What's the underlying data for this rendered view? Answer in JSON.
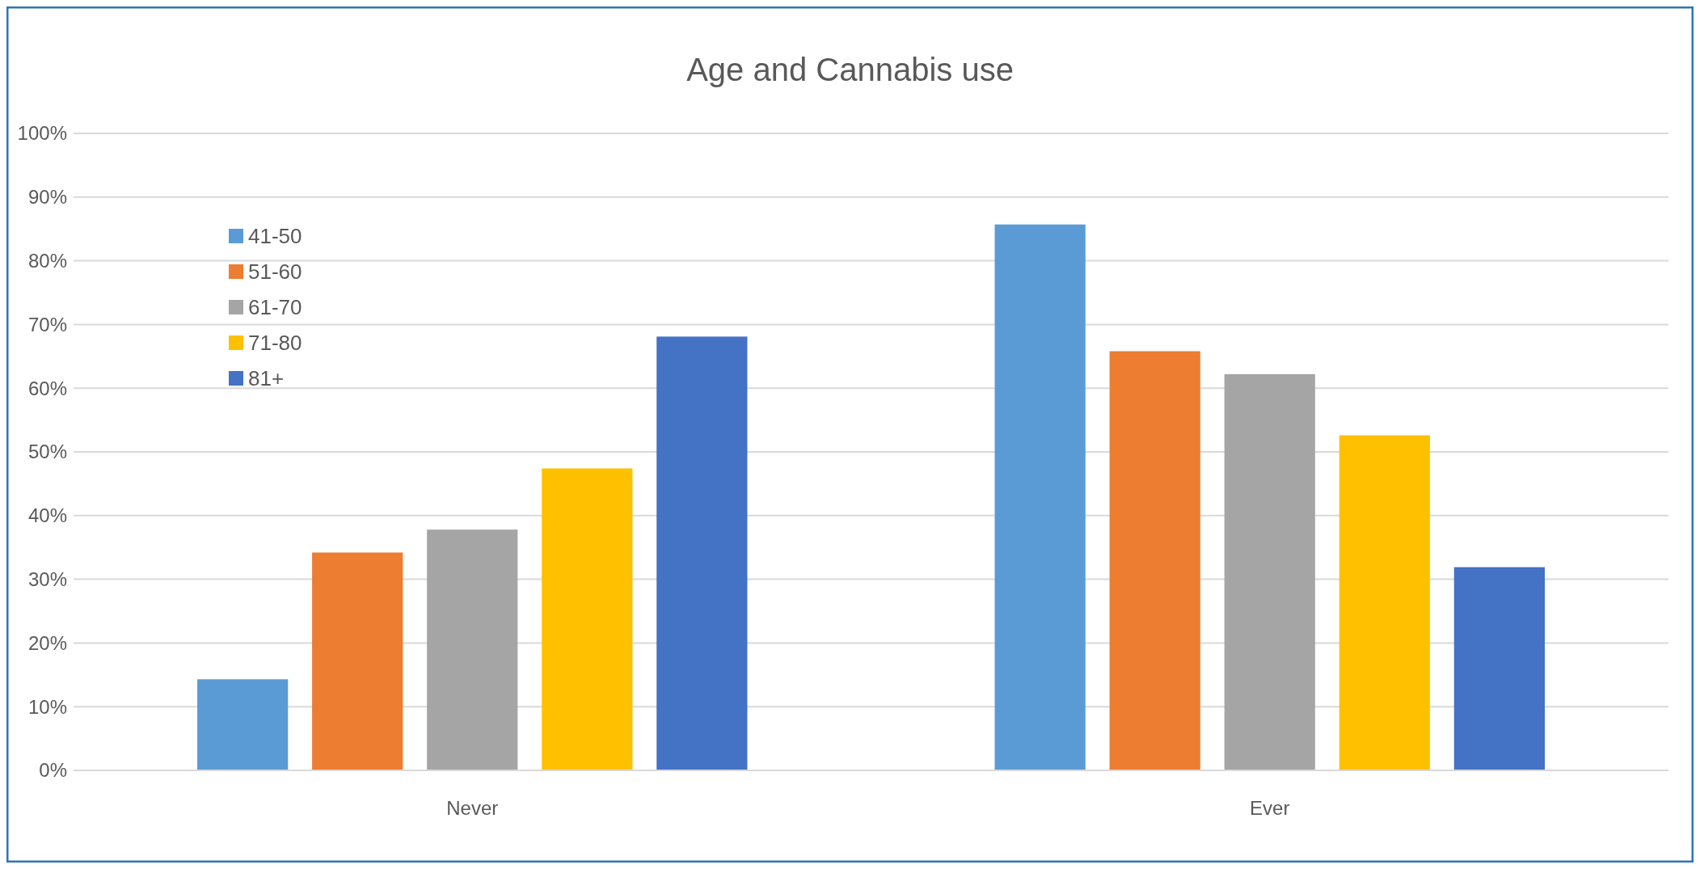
{
  "chart_data": {
    "type": "bar",
    "title": "Age and Cannabis use",
    "categories": [
      "Never",
      "Ever"
    ],
    "series": [
      {
        "name": "41-50",
        "color": "#5b9bd5",
        "values": [
          14.3,
          85.7
        ]
      },
      {
        "name": "51-60",
        "color": "#ed7d31",
        "values": [
          34.2,
          65.8
        ]
      },
      {
        "name": "61-70",
        "color": "#a5a5a5",
        "values": [
          37.8,
          62.2
        ]
      },
      {
        "name": "71-80",
        "color": "#ffc000",
        "values": [
          47.4,
          52.6
        ]
      },
      {
        "name": "81+",
        "color": "#4472c4",
        "values": [
          68.1,
          31.9
        ]
      }
    ],
    "ylim": [
      0,
      100
    ],
    "yticks": [
      {
        "value": 0,
        "label": "0%"
      },
      {
        "value": 10,
        "label": "10%"
      },
      {
        "value": 20,
        "label": "20%"
      },
      {
        "value": 30,
        "label": "30%"
      },
      {
        "value": 40,
        "label": "40%"
      },
      {
        "value": 50,
        "label": "50%"
      },
      {
        "value": 60,
        "label": "60%"
      },
      {
        "value": 70,
        "label": "70%"
      },
      {
        "value": 80,
        "label": "80%"
      },
      {
        "value": 90,
        "label": "90%"
      },
      {
        "value": 100,
        "label": "100%"
      }
    ],
    "grid": "y",
    "legend": "top left"
  }
}
